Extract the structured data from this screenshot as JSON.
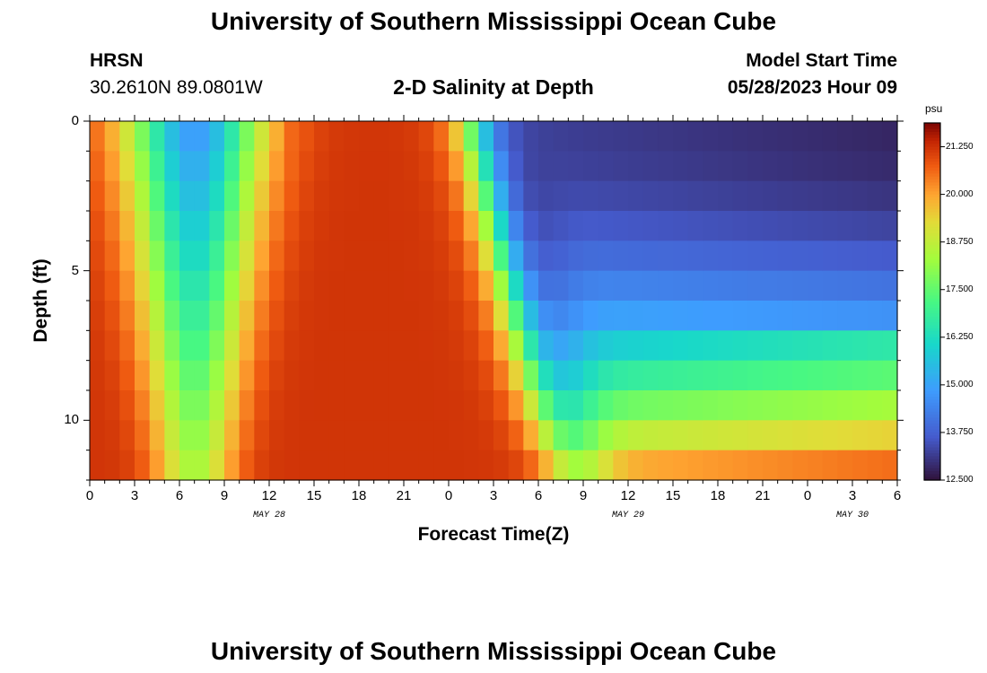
{
  "page_title": "University of Southern Mississippi Ocean Cube",
  "footer_title": "University of Southern Mississippi Ocean Cube",
  "station": {
    "name": "HRSN",
    "coords": "30.2610N  89.0801W"
  },
  "plot_title": "2-D Salinity at Depth",
  "model_start": {
    "label": "Model Start Time",
    "value": "05/28/2023 Hour 09"
  },
  "chart_data": {
    "type": "heatmap",
    "title": "2-D Salinity at Depth",
    "xlabel": "Forecast Time(Z)",
    "ylabel": "Depth (ft)",
    "x_range_hours": [
      0,
      54
    ],
    "x_ticks": [
      {
        "hour": 0,
        "label": "0"
      },
      {
        "hour": 3,
        "label": "3"
      },
      {
        "hour": 6,
        "label": "6"
      },
      {
        "hour": 9,
        "label": "9"
      },
      {
        "hour": 12,
        "label": "12"
      },
      {
        "hour": 15,
        "label": "15"
      },
      {
        "hour": 18,
        "label": "18"
      },
      {
        "hour": 21,
        "label": "21"
      },
      {
        "hour": 24,
        "label": "0"
      },
      {
        "hour": 27,
        "label": "3"
      },
      {
        "hour": 30,
        "label": "6"
      },
      {
        "hour": 33,
        "label": "9"
      },
      {
        "hour": 36,
        "label": "12"
      },
      {
        "hour": 39,
        "label": "15"
      },
      {
        "hour": 42,
        "label": "18"
      },
      {
        "hour": 45,
        "label": "21"
      },
      {
        "hour": 48,
        "label": "0"
      },
      {
        "hour": 51,
        "label": "3"
      },
      {
        "hour": 54,
        "label": "6"
      }
    ],
    "date_labels": [
      {
        "hour": 12,
        "label": "MAY 28"
      },
      {
        "hour": 36,
        "label": "MAY 29"
      },
      {
        "hour": 51,
        "label": "MAY 30"
      }
    ],
    "y_range_ft": [
      0,
      12
    ],
    "y_ticks": [
      {
        "depth": 0,
        "label": "0"
      },
      {
        "depth": 5,
        "label": "5"
      },
      {
        "depth": 10,
        "label": "10"
      }
    ],
    "colorbar": {
      "unit": "psu",
      "min": 12.5,
      "max": 21.875,
      "ticks": [
        "12.500",
        "13.750",
        "15.000",
        "16.250",
        "17.500",
        "18.750",
        "20.000",
        "21.250"
      ]
    },
    "depth_layers": 12,
    "time_steps": 54,
    "features": {
      "fresh_pulse_1": {
        "center_hour": 7,
        "width_hours": 3.6,
        "surface_salinity": 14.7,
        "bottom_salinity": 18.5
      },
      "salty_core_hours": [
        13,
        24
      ],
      "fresh_front_surface_hour": 25.5,
      "fresh_front_bottom_hour": 30.5,
      "late_surface_salinity": 13.2,
      "late_bottom_salinity": 20.3
    }
  }
}
